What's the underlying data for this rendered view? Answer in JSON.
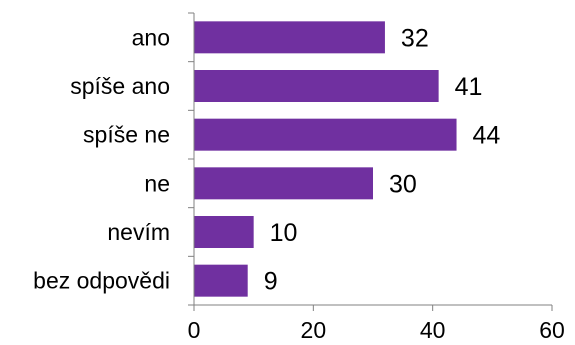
{
  "chart_data": {
    "type": "bar",
    "orientation": "horizontal",
    "categories": [
      "ano",
      "spíše ano",
      "spíše ne",
      "ne",
      "nevím",
      "bez odpovědi"
    ],
    "values": [
      32,
      41,
      44,
      30,
      10,
      9
    ],
    "xlim": [
      0,
      60
    ],
    "xticks": [
      0,
      20,
      40,
      60
    ],
    "data_labels": true,
    "grid": false,
    "legend": "none",
    "colors": {
      "bar": "#7030A0",
      "axis": "#808080"
    }
  }
}
